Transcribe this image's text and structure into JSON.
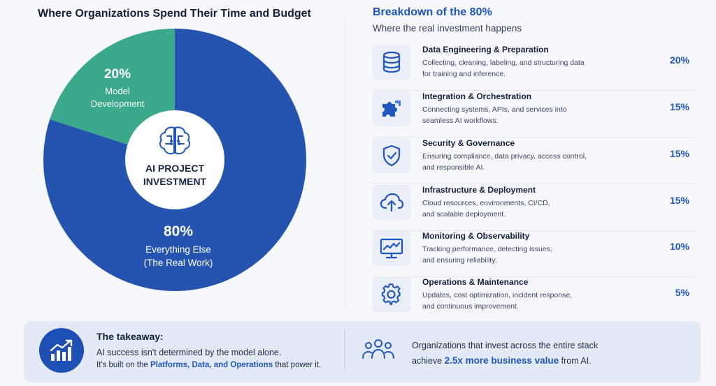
{
  "left_panel": {
    "title": "Where Organizations Spend Their Time and Budget",
    "center_label_line1": "AI PROJECT",
    "center_label_line2": "INVESTMENT"
  },
  "chart_data": {
    "type": "pie",
    "title": "Where Organizations Spend Their Time and Budget",
    "slices": [
      {
        "label_line1": "Model",
        "label_line2": "Development",
        "pct_text": "20%",
        "value": 20,
        "color": "#3aa88a"
      },
      {
        "label_line1": "Everything Else",
        "label_line2": "(The Real Work)",
        "pct_text": "80%",
        "value": 80,
        "color": "#2454b0"
      }
    ],
    "center_text": "AI PROJECT INVESTMENT"
  },
  "right_panel": {
    "title": "Breakdown of the 80%",
    "subtitle": "Where the real investment happens",
    "items": [
      {
        "icon": "database-icon",
        "title": "Data Engineering & Preparation",
        "desc_line1": "Collecting, cleaning, labeling, and structuring data",
        "desc_line2": "for training and inference.",
        "pct": "20%"
      },
      {
        "icon": "puzzle-icon",
        "title": "Integration & Orchestration",
        "desc_line1": "Connecting systems, APIs, and services into",
        "desc_line2": "seamless AI workflows.",
        "pct": "15%"
      },
      {
        "icon": "shield-check-icon",
        "title": "Security & Governance",
        "desc_line1": "Ensuring compliance, data privacy, access control,",
        "desc_line2": "and responsible AI.",
        "pct": "15%"
      },
      {
        "icon": "cloud-upload-icon",
        "title": "Infrastructure & Deployment",
        "desc_line1": "Cloud resources, environments, CI/CD,",
        "desc_line2": "and scalable deployment.",
        "pct": "15%"
      },
      {
        "icon": "monitor-chart-icon",
        "title": "Monitoring & Observability",
        "desc_line1": "Tracking performance, detecting issues,",
        "desc_line2": "and ensuring reliability.",
        "pct": "10%"
      },
      {
        "icon": "gear-icon",
        "title": "Operations & Maintenance",
        "desc_line1": "Updates, cost optimization, incident response,",
        "desc_line2": "and continuous improvement.",
        "pct": "5%"
      }
    ]
  },
  "takeaway": {
    "title": "The takeaway:",
    "line1": "AI success isn't determined by the model alone.",
    "line2_prefix": "It's built on the ",
    "line2_bold": "Platforms, Data, and Operations",
    "line2_suffix": " that power it.",
    "stat_line1": "Organizations that invest across the entire stack",
    "stat_prefix": "achieve ",
    "stat_bold": "2.5x more business value",
    "stat_suffix": " from AI."
  },
  "colors": {
    "accent": "#1f56c0",
    "green": "#3aa88a",
    "blue": "#2454b0"
  }
}
